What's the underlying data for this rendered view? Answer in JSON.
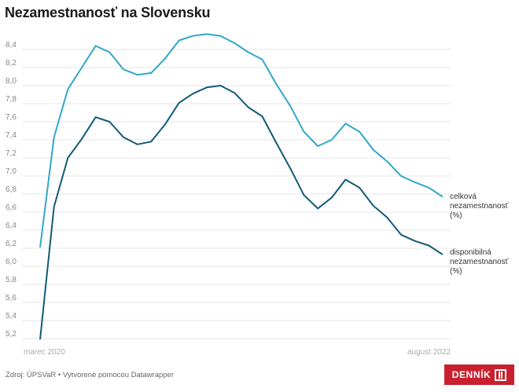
{
  "title": "Nezamestnanosť na Slovensku",
  "footer": "Zdroj: ÚPSVaR • Vytvorené pomocou Datawrapper",
  "logo_text": "DENNÍK",
  "colors": {
    "celkova": "#30a8c8",
    "disponibilna": "#125a78",
    "grid": "#e6e6e6"
  },
  "chart_data": {
    "type": "line",
    "title": "Nezamestnanosť na Slovensku",
    "x_start_label": "marec 2020",
    "x_end_label": "august 2022",
    "ylim": [
      5.2,
      8.6
    ],
    "yticks": [
      "8,4",
      "8,2",
      "8,0",
      "7,8",
      "7,6",
      "7,4",
      "7,2",
      "7,0",
      "6,8",
      "6,6",
      "6,4",
      "6,2",
      "6,0",
      "5,8",
      "5,6",
      "5,4",
      "5,2"
    ],
    "ytick_values": [
      8.4,
      8.2,
      8.0,
      7.8,
      7.6,
      7.4,
      7.2,
      7.0,
      6.8,
      6.6,
      6.4,
      6.2,
      6.0,
      5.8,
      5.6,
      5.4,
      5.2
    ],
    "grid": true,
    "x": [
      "2020-03",
      "2020-04",
      "2020-05",
      "2020-06",
      "2020-07",
      "2020-08",
      "2020-09",
      "2020-10",
      "2020-11",
      "2020-12",
      "2021-01",
      "2021-02",
      "2021-03",
      "2021-04",
      "2021-05",
      "2021-06",
      "2021-07",
      "2021-08",
      "2021-09",
      "2021-10",
      "2021-11",
      "2021-12",
      "2022-01",
      "2022-02",
      "2022-03",
      "2022-04",
      "2022-05",
      "2022-06",
      "2022-07",
      "2022-08"
    ],
    "series": [
      {
        "name": "celková nezamestnanosť (%)",
        "label_lines": [
          "celková",
          "nezamestnanosť",
          "(%)"
        ],
        "values": [
          6.21,
          7.43,
          7.96,
          8.2,
          8.44,
          8.37,
          8.18,
          8.12,
          8.14,
          8.3,
          8.5,
          8.55,
          8.57,
          8.55,
          8.47,
          8.37,
          8.29,
          8.02,
          7.78,
          7.49,
          7.33,
          7.4,
          7.58,
          7.49,
          7.29,
          7.16,
          7.0,
          6.93,
          6.87,
          6.77
        ]
      },
      {
        "name": "disponibilná nezamestnanosť (%)",
        "label_lines": [
          "disponibilná",
          "nezamestnanosť",
          "(%)"
        ],
        "values": [
          5.19,
          6.66,
          7.2,
          7.41,
          7.65,
          7.6,
          7.43,
          7.35,
          7.38,
          7.57,
          7.81,
          7.91,
          7.98,
          8.0,
          7.92,
          7.76,
          7.66,
          7.37,
          7.09,
          6.79,
          6.64,
          6.76,
          6.96,
          6.87,
          6.67,
          6.54,
          6.35,
          6.28,
          6.23,
          6.13
        ]
      }
    ]
  }
}
